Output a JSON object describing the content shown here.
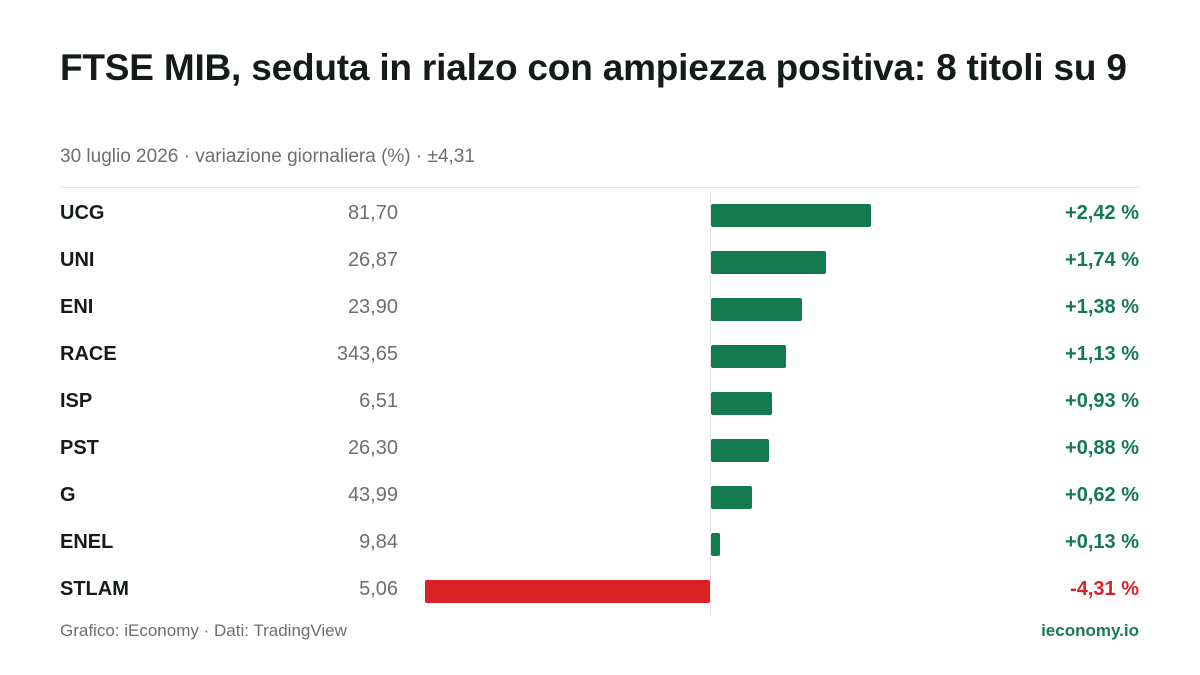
{
  "header": {
    "title": "FTSE MIB, seduta in rialzo con ampiezza positiva: 8 titoli su 9",
    "subtitle": "30 luglio 2026 · variazione giornaliera (%) · ±4,31"
  },
  "footer": {
    "source": "Grafico: iEconomy · Dati: TradingView",
    "brand": "ieconomy.io"
  },
  "colors": {
    "positive": "#137a50",
    "negative": "#d92228"
  },
  "chart_data": {
    "type": "bar",
    "orientation": "horizontal",
    "x_range": [
      -4.31,
      4.31
    ],
    "rows": [
      {
        "ticker": "UCG",
        "price": "81,70",
        "value": 2.42,
        "label": "+2,42 %"
      },
      {
        "ticker": "UNI",
        "price": "26,87",
        "value": 1.74,
        "label": "+1,74 %"
      },
      {
        "ticker": "ENI",
        "price": "23,90",
        "value": 1.38,
        "label": "+1,38 %"
      },
      {
        "ticker": "RACE",
        "price": "343,65",
        "value": 1.13,
        "label": "+1,13 %"
      },
      {
        "ticker": "ISP",
        "price": "6,51",
        "value": 0.93,
        "label": "+0,93 %"
      },
      {
        "ticker": "PST",
        "price": "26,30",
        "value": 0.88,
        "label": "+0,88 %"
      },
      {
        "ticker": "G",
        "price": "43,99",
        "value": 0.62,
        "label": "+0,62 %"
      },
      {
        "ticker": "ENEL",
        "price": "9,84",
        "value": 0.13,
        "label": "+0,13 %"
      },
      {
        "ticker": "STLAM",
        "price": "5,06",
        "value": -4.31,
        "label": "-4,31 %"
      }
    ]
  }
}
